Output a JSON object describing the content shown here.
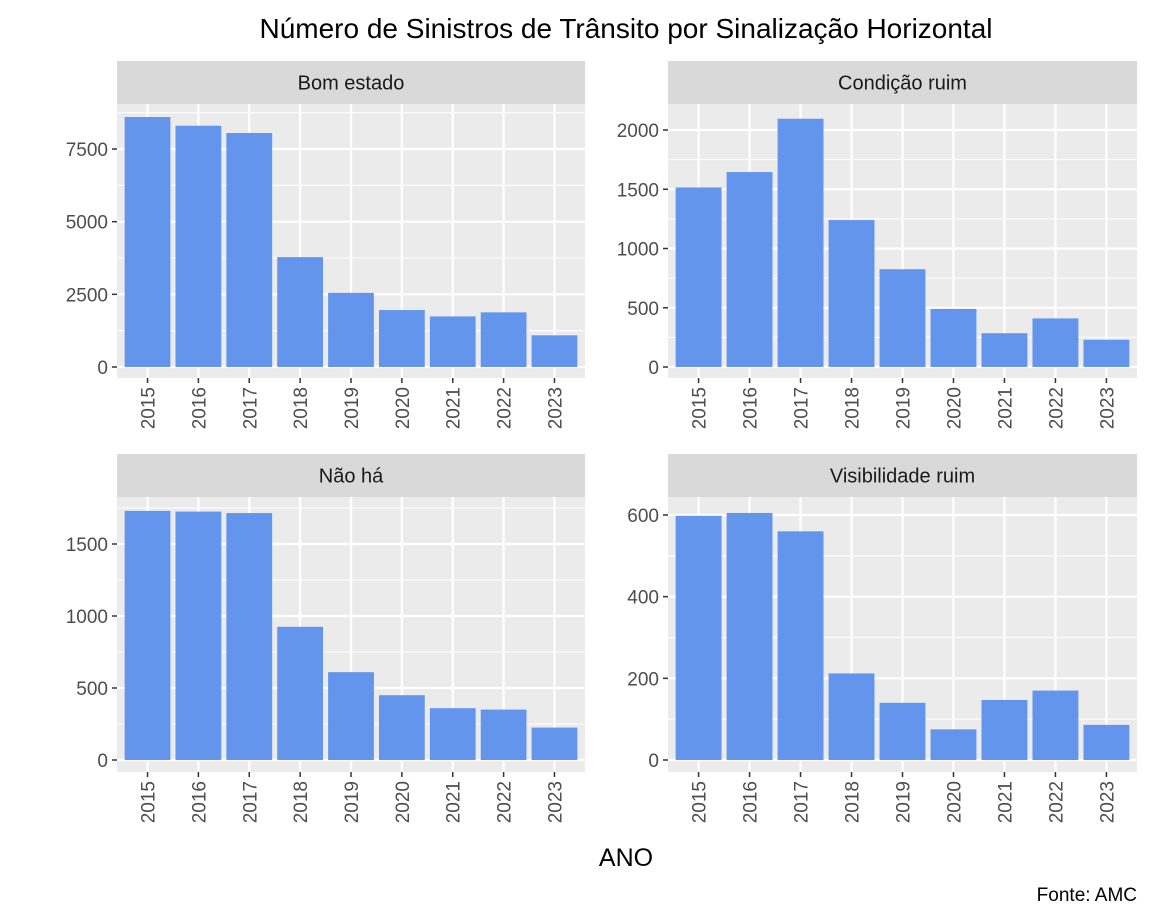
{
  "chart_data": {
    "type": "bar",
    "title": "Número de Sinistros de Trânsito por Sinalização Horizontal",
    "xlabel": "ANO",
    "ylabel": "",
    "caption": "Fonte: AMC",
    "categories": [
      "2015",
      "2016",
      "2017",
      "2018",
      "2019",
      "2020",
      "2021",
      "2022",
      "2023"
    ],
    "grid": true,
    "bar_color": "#6495ED",
    "panel_background": "#EBEBEB",
    "strip_background": "#D9D9D9",
    "facets": [
      {
        "name": "Bom estado",
        "values": [
          8600,
          8300,
          8050,
          3780,
          2550,
          1960,
          1740,
          1880,
          1090
        ],
        "ylim": [
          0,
          9000
        ],
        "yticks": [
          0,
          2500,
          5000,
          7500
        ],
        "ytick_labels": [
          "0",
          "2500",
          "5000",
          "7500"
        ]
      },
      {
        "name": "Condição ruim",
        "values": [
          1515,
          1645,
          2095,
          1240,
          825,
          490,
          285,
          410,
          230
        ],
        "ylim": [
          0,
          2100
        ],
        "yticks": [
          0,
          500,
          1000,
          1500,
          2000
        ],
        "ytick_labels": [
          "0",
          "500",
          "1000",
          "1500",
          "2000"
        ]
      },
      {
        "name": "Não há",
        "values": [
          1730,
          1725,
          1715,
          925,
          610,
          450,
          360,
          350,
          225
        ],
        "ylim": [
          0,
          1800
        ],
        "yticks": [
          0,
          500,
          1000,
          1500
        ],
        "ytick_labels": [
          "0",
          "500",
          "1000",
          "1500"
        ]
      },
      {
        "name": "Visibilidade ruim",
        "values": [
          598,
          605,
          560,
          212,
          140,
          75,
          147,
          170,
          86
        ],
        "ylim": [
          0,
          630
        ],
        "yticks": [
          0,
          200,
          400,
          600
        ],
        "ytick_labels": [
          "0",
          "200",
          "400",
          "600"
        ]
      }
    ]
  }
}
